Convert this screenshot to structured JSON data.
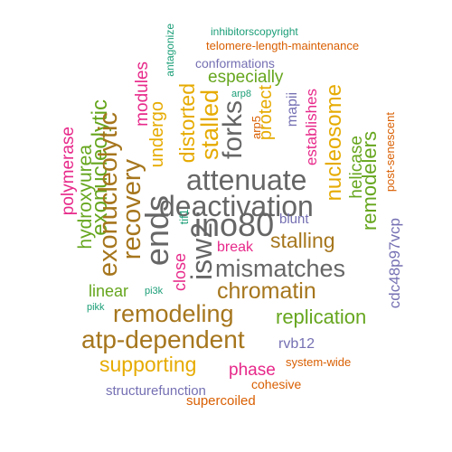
{
  "palette": {
    "teal": "#1b9e77",
    "orange": "#d95f02",
    "purple": "#7570b3",
    "magenta": "#e7298a",
    "green": "#66a61e",
    "gold": "#e6ab02",
    "brown": "#a6761d",
    "gray": "#666666"
  },
  "words": [
    {
      "text": "inhibitorscopyright",
      "color": "#1b9e77"
    },
    {
      "text": "telomere-length-maintenance",
      "color": "#d95f02"
    },
    {
      "text": "conformations",
      "color": "#7570b3"
    },
    {
      "text": "especially",
      "color": "#66a61e"
    },
    {
      "text": "arp8",
      "color": "#1b9e77"
    },
    {
      "text": "modules",
      "color": "#e7298a"
    },
    {
      "text": "antagonize",
      "color": "#1b9e77"
    },
    {
      "text": "exonucleolytic",
      "color": "#66a61e"
    },
    {
      "text": "undergo",
      "color": "#e6ab02"
    },
    {
      "text": "distorted",
      "color": "#e6ab02"
    },
    {
      "text": "stalled",
      "color": "#e6ab02"
    },
    {
      "text": "forks",
      "color": "#666666"
    },
    {
      "text": "arp5",
      "color": "#d95f02"
    },
    {
      "text": "protect",
      "color": "#e6ab02"
    },
    {
      "text": "mapii",
      "color": "#7570b3"
    },
    {
      "text": "establishes",
      "color": "#e7298a"
    },
    {
      "text": "nucleosome",
      "color": "#e6ab02"
    },
    {
      "text": "post-senescent",
      "color": "#d95f02"
    },
    {
      "text": "helicase",
      "color": "#66a61e"
    },
    {
      "text": "remodelers",
      "color": "#66a61e"
    },
    {
      "text": "attenuate",
      "color": "#666666"
    },
    {
      "text": "deactivation",
      "color": "#666666"
    },
    {
      "text": "polymerase",
      "color": "#e7298a"
    },
    {
      "text": "hydroxyurea",
      "color": "#66a61e"
    },
    {
      "text": "exonucleolytic",
      "color": "#a6761d"
    },
    {
      "text": "recovery",
      "color": "#a6761d"
    },
    {
      "text": "ends",
      "color": "#666666"
    },
    {
      "text": "tif1",
      "color": "#1b9e77"
    },
    {
      "text": "ino80",
      "color": "#666666"
    },
    {
      "text": "blunt",
      "color": "#7570b3"
    },
    {
      "text": "stalling",
      "color": "#a6761d"
    },
    {
      "text": "break",
      "color": "#e7298a"
    },
    {
      "text": "cdc48p97vcp",
      "color": "#7570b3"
    },
    {
      "text": "close",
      "color": "#e7298a"
    },
    {
      "text": "isw2",
      "color": "#666666"
    },
    {
      "text": "mismatches",
      "color": "#666666"
    },
    {
      "text": "linear",
      "color": "#66a61e"
    },
    {
      "text": "pi3k",
      "color": "#1b9e77"
    },
    {
      "text": "pikk",
      "color": "#1b9e77"
    },
    {
      "text": "chromatin",
      "color": "#a6761d"
    },
    {
      "text": "remodeling",
      "color": "#a6761d"
    },
    {
      "text": "replication",
      "color": "#66a61e"
    },
    {
      "text": "atp-dependent",
      "color": "#a6761d"
    },
    {
      "text": "rvb12",
      "color": "#7570b3"
    },
    {
      "text": "supporting",
      "color": "#e6ab02"
    },
    {
      "text": "phase",
      "color": "#e7298a"
    },
    {
      "text": "system-wide",
      "color": "#d95f02"
    },
    {
      "text": "cohesive",
      "color": "#d95f02"
    },
    {
      "text": "structurefunction",
      "color": "#7570b3"
    },
    {
      "text": "supercoiled",
      "color": "#d95f02"
    }
  ]
}
